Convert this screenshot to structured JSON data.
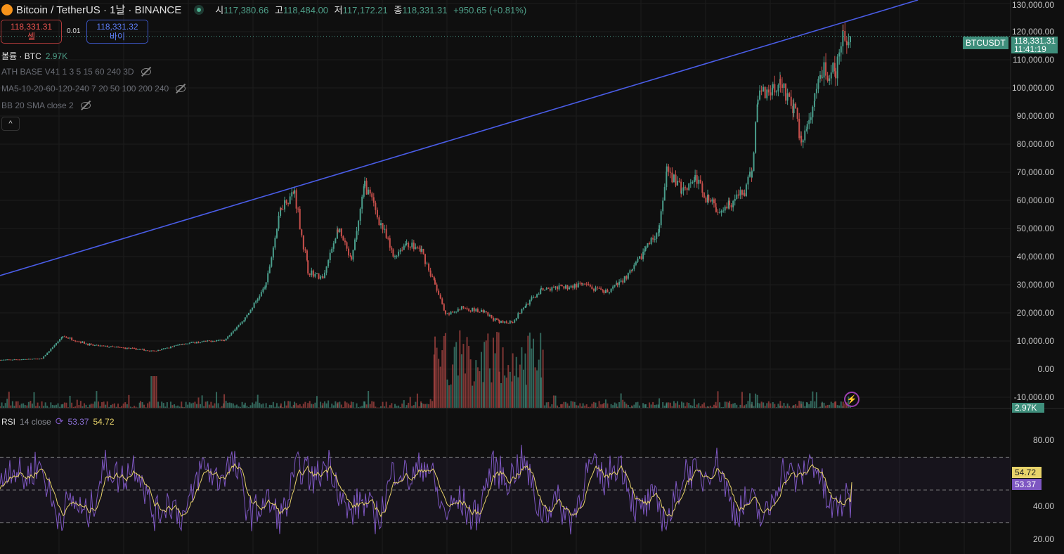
{
  "header": {
    "symbol": "Bitcoin / TetherUS · 1날 · BINANCE",
    "o_label": "시",
    "open": "117,380.66",
    "h_label": "고",
    "high": "118,484.00",
    "l_label": "저",
    "low": "117,172.21",
    "c_label": "종",
    "close": "118,331.31",
    "change": "+950.65 (+0.81%)"
  },
  "trade": {
    "sell_price": "118,331.31",
    "sell_label": "셀",
    "spread": "0.01",
    "buy_price": "118,331.32",
    "buy_label": "바이"
  },
  "legends": {
    "volume_label": "볼륨 · BTC",
    "volume_value": "2.97K",
    "ath": "ATH BASE V41 1 3 5 15 60 240 3D",
    "ma": "MA5-10-20-60-120-240 7 20 50 100 200 240",
    "bb": "BB 20 SMA close 2",
    "collapse": "^"
  },
  "price_axis": [
    "130,000.00",
    "120,000.00",
    "110,000.00",
    "100,000.00",
    "90,000.00",
    "80,000.00",
    "70,000.00",
    "60,000.00",
    "50,000.00",
    "40,000.00",
    "30,000.00",
    "20,000.00",
    "10,000.00",
    "0.00",
    "-10,000.00"
  ],
  "tags": {
    "symbol": "BTCUSDT",
    "price": "118,331.31",
    "countdown": "11:41:19",
    "volume": "2.97K",
    "rsi_ma": "54.72",
    "rsi": "53.37"
  },
  "rsi": {
    "label": "RSI",
    "params": "14 close",
    "value": "53.37",
    "ma_value": "54.72",
    "axis": [
      "80.00",
      "40.00",
      "20.00"
    ],
    "bands": [
      30,
      50,
      70
    ]
  },
  "colors": {
    "up": "#4a9e8c",
    "down": "#c9504c",
    "trendline": "#4a5de8",
    "rsi": "#7e57c2",
    "rsi_ma": "#e8d36a"
  },
  "chart_data": {
    "type": "candlestick",
    "ylim": [
      -10000,
      130000
    ],
    "rsi_ylim": [
      10,
      90
    ],
    "close_path": [
      [
        0,
        3250
      ],
      [
        140,
        3700
      ],
      [
        210,
        11700
      ],
      [
        305,
        8500
      ],
      [
        470,
        7000
      ],
      [
        517,
        6300
      ],
      [
        610,
        9000
      ],
      [
        750,
        10500
      ],
      [
        820,
        18000
      ],
      [
        890,
        30000
      ],
      [
        940,
        58000
      ],
      [
        985,
        63000
      ],
      [
        1030,
        35000
      ],
      [
        1080,
        32000
      ],
      [
        1130,
        50000
      ],
      [
        1175,
        38000
      ],
      [
        1220,
        66000
      ],
      [
        1280,
        50000
      ],
      [
        1315,
        40000
      ],
      [
        1360,
        45000
      ],
      [
        1410,
        42000
      ],
      [
        1455,
        30000
      ],
      [
        1490,
        19000
      ],
      [
        1550,
        22000
      ],
      [
        1620,
        20000
      ],
      [
        1670,
        16500
      ],
      [
        1715,
        17000
      ],
      [
        1760,
        23000
      ],
      [
        1810,
        28000
      ],
      [
        1880,
        29000
      ],
      [
        1950,
        30000
      ],
      [
        2020,
        27000
      ],
      [
        2065,
        30000
      ],
      [
        2115,
        35000
      ],
      [
        2160,
        43000
      ],
      [
        2205,
        50000
      ],
      [
        2230,
        70000
      ],
      [
        2280,
        64000
      ],
      [
        2325,
        68000
      ],
      [
        2370,
        60000
      ],
      [
        2395,
        57000
      ],
      [
        2440,
        59000
      ],
      [
        2490,
        63000
      ],
      [
        2515,
        70000
      ],
      [
        2535,
        98000
      ],
      [
        2585,
        100000
      ],
      [
        2610,
        103000
      ],
      [
        2655,
        92000
      ],
      [
        2680,
        82000
      ],
      [
        2700,
        85000
      ],
      [
        2725,
        95000
      ],
      [
        2750,
        106000
      ],
      [
        2795,
        105000
      ],
      [
        2820,
        118000
      ],
      [
        2848,
        118331.31
      ]
    ],
    "trendline": [
      [
        0,
        33250
      ],
      [
        3070,
        131250
      ]
    ],
    "last_close": 118331.31,
    "x_max": 3380
  }
}
